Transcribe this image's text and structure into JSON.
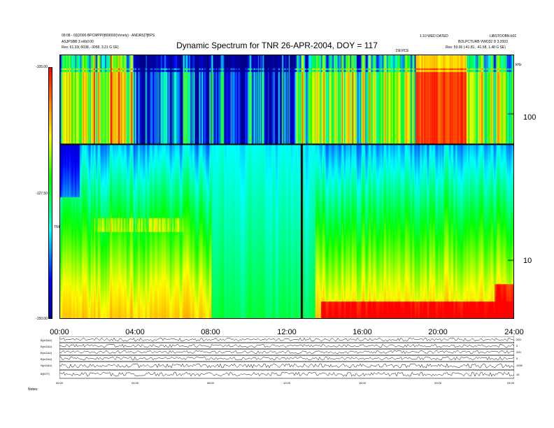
{
  "chart_data": {
    "type": "heatmap",
    "title": "Dynamic Spectrum for TNR 26-APR-2004, DOY = 117",
    "header_left": [
      "09:08 - 03(2000-BPCMPP0809000(Vonely) - ANDRS[?]BPS",
      "ASJPSBB 3 el/b0:00",
      "Res: 61.33(-5038, -3058, 3.21 G SE)"
    ],
    "header_right": [
      "1:10 WED DATED",
      "LIBSTOOBN:b01",
      "BOLPCTURB VWD32 D 3.2003",
      "Res: 59.06 (-41.81, -41.58, 1.48 G SE)"
    ],
    "mid_label": "DEVICE",
    "x_axis": {
      "ticks": [
        "00:00",
        "04:00",
        "08:00",
        "12:00",
        "16:00",
        "20:00",
        "24:00"
      ],
      "range_hours": [
        0,
        24
      ]
    },
    "y_axis": {
      "unit": "kHz",
      "scale": "log",
      "ticks": [
        10,
        100
      ],
      "range": [
        4,
        250
      ]
    },
    "colorbar": {
      "label": "TNR",
      "ticks": [
        "-105.00",
        "-127.50",
        "-150.00"
      ],
      "range": [
        -150,
        -105
      ],
      "colors": [
        "#00008b",
        "#0000ff",
        "#00ffff",
        "#00ff00",
        "#ffff00",
        "#ff8c00",
        "#ff0000"
      ]
    },
    "gap_hour": 12.75,
    "panels": {
      "labels": [
        "B(nGAU)",
        "B(nGAU)",
        "B(nGAU)",
        "B(nGAU)",
        "N(nGAU)",
        "B(NTT)"
      ],
      "right_labels": [
        "200",
        "0",
        "200",
        "0",
        "1000",
        "10"
      ],
      "x_ticks": [
        "00:00",
        "04:00",
        "08:00",
        "12:00",
        "16:00",
        "20:00",
        "24:00"
      ],
      "footer": "Notes:   "
    }
  }
}
